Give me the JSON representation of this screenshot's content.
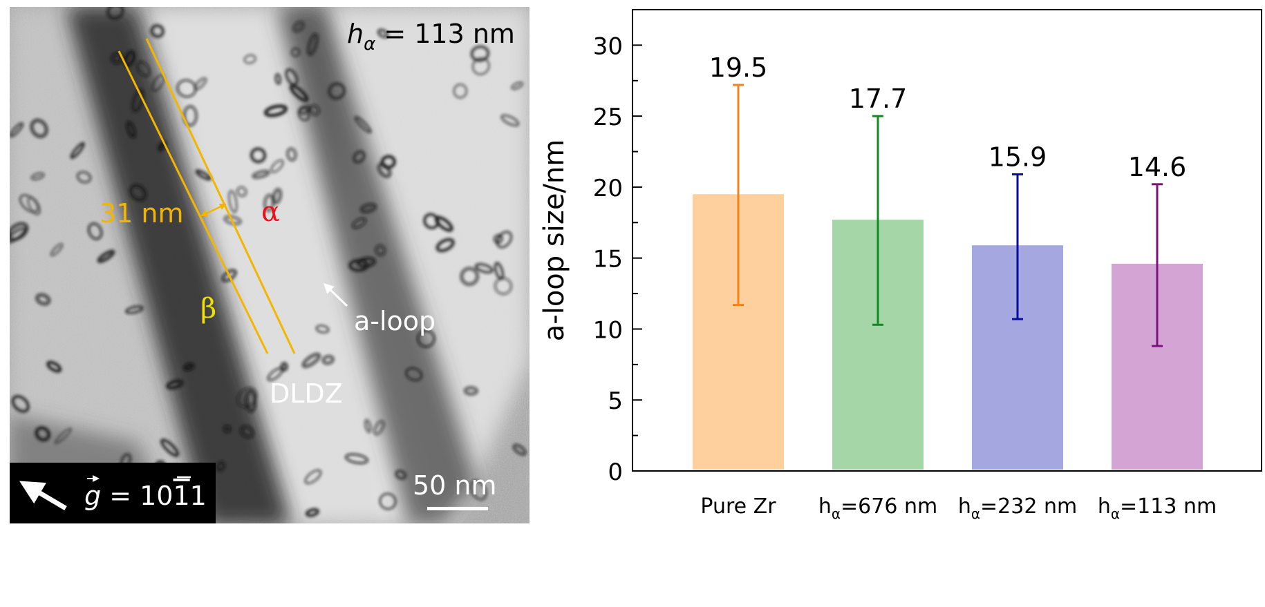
{
  "micrograph": {
    "thickness_label": {
      "symbol": "h",
      "subscript": "α",
      "value": " = 113 nm"
    },
    "width_label": "31 nm",
    "alpha_label": "α",
    "beta_label": "β",
    "loop_label": "a-loop",
    "zone_label": "DLDZ",
    "g_vector_label": {
      "symbol": "g",
      "text": " = 10",
      "overbar_digit": "1",
      "last_digit": "1"
    },
    "scale_bar_label": "50 nm",
    "colors": {
      "lines": "#f2b600",
      "alpha": "#e8101a",
      "beta": "#f0e000",
      "white_text": "#ffffff"
    }
  },
  "chart_data": {
    "type": "bar",
    "categories": [
      "Pure Zr",
      "hα=676 nm",
      "hα=232 nm",
      "hα=113 nm"
    ],
    "category_labels": [
      {
        "main": "Pure Zr",
        "sub": "",
        "rest": ""
      },
      {
        "main": "h",
        "sub": "α",
        "rest": "=676 nm"
      },
      {
        "main": "h",
        "sub": "α",
        "rest": "=232 nm"
      },
      {
        "main": "h",
        "sub": "α",
        "rest": "=113 nm"
      }
    ],
    "values": [
      19.5,
      17.7,
      15.9,
      14.6
    ],
    "error_low": [
      11.7,
      10.3,
      10.7,
      8.8
    ],
    "error_high": [
      27.2,
      25.0,
      20.9,
      20.2
    ],
    "value_labels": [
      "19.5",
      "17.7",
      "15.9",
      "14.6"
    ],
    "bar_colors": [
      "#fdd09e",
      "#a5d6a7",
      "#a5a7e0",
      "#d4a5d4"
    ],
    "error_colors": [
      "#f58220",
      "#138a1f",
      "#0a0a9c",
      "#7d117e"
    ],
    "ylabel": "a-loop size/nm",
    "xlabel": "",
    "ylim": [
      0,
      32.5
    ],
    "yticks": [
      0,
      5,
      10,
      15,
      20,
      25,
      30
    ],
    "ytick_labels": [
      "0",
      "5",
      "10",
      "15",
      "20",
      "25",
      "30"
    ],
    "grid": false,
    "legend": "none"
  }
}
